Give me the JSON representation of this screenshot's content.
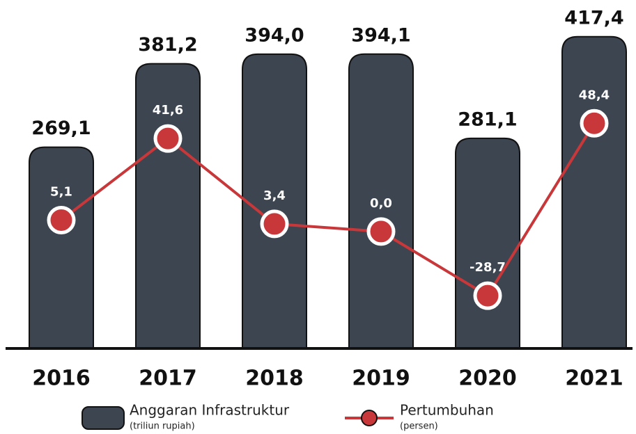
{
  "chart_data": {
    "type": "bar",
    "categories": [
      "2016",
      "2017",
      "2018",
      "2019",
      "2020",
      "2021"
    ],
    "series": [
      {
        "name": "Anggaran Infrastruktur",
        "sublabel": "(triliun rupiah)",
        "type": "bar",
        "color": "#3c4550",
        "values": [
          269.1,
          381.2,
          394.0,
          394.1,
          281.1,
          417.4
        ],
        "value_labels": [
          "269,1",
          "381,2",
          "394,0",
          "394,1",
          "281,1",
          "417,4"
        ]
      },
      {
        "name": "Pertumbuhan",
        "sublabel": "(persen)",
        "type": "line",
        "axis": "y2",
        "color": "#c8383a",
        "values": [
          5.1,
          41.6,
          3.4,
          0.0,
          -28.7,
          48.4
        ],
        "value_labels": [
          "5,1",
          "41,6",
          "3,4",
          "0,0",
          "-28,7",
          "48,4"
        ]
      }
    ],
    "ylim": [
      0,
      420
    ],
    "y2lim": [
      -52,
      88
    ]
  }
}
